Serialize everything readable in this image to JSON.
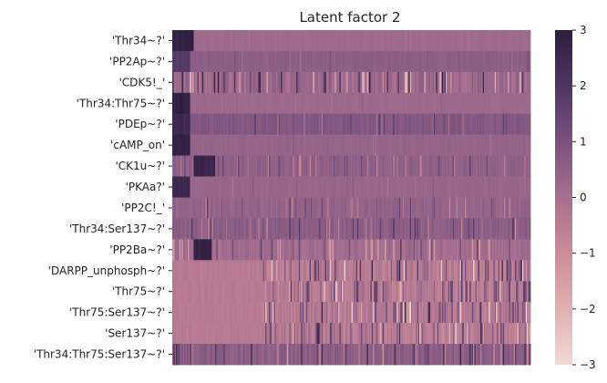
{
  "chart_data": {
    "type": "heatmap",
    "title": "Latent factor 2",
    "xlabel": "",
    "ylabel": "",
    "row_labels": [
      "'Thr34~?'",
      "'PP2Ap~?'",
      "'CDK5!_'",
      "'Thr34:Thr75~?'",
      "'PDEp~?'",
      "'cAMP_on'",
      "'CK1u~?'",
      "'PKAa?'",
      "'PP2C!_'",
      "'Thr34:Ser137~?'",
      "'PP2Ba~?'",
      "'DARPP_unphosph~?'",
      "'Thr75~?'",
      "'Thr75:Ser137~?'",
      "'Ser137~?'",
      "'Thr34:Thr75:Ser137~?'"
    ],
    "column_count": 300,
    "value_range": [
      -3,
      3
    ],
    "colorbar": {
      "ticks": [
        3,
        2,
        1,
        0,
        -1,
        -2,
        -3
      ],
      "tick_labels": [
        "3",
        "2",
        "1",
        "0",
        "−1",
        "−2",
        "−3"
      ],
      "colors": [
        "#f0dad6",
        "#e0b0ae",
        "#cc8c98",
        "#a66f8f",
        "#7a527d",
        "#4f3563",
        "#2d1e3e"
      ]
    },
    "rows_profile": [
      {
        "base": 0.15,
        "noise": 0.15,
        "hot_start": 0.0,
        "hot_end": 0.06,
        "hot_value": 3.0,
        "texture": 0.2
      },
      {
        "base": 0.55,
        "noise": 0.25,
        "hot_start": 0.0,
        "hot_end": 0.05,
        "hot_value": 2.0,
        "texture": 0.3
      },
      {
        "base": 0.2,
        "noise": 1.4,
        "hot_start": 0.0,
        "hot_end": 0.0,
        "hot_value": 0,
        "texture": 1.0
      },
      {
        "base": 0.2,
        "noise": 0.15,
        "hot_start": 0.0,
        "hot_end": 0.05,
        "hot_value": 3.0,
        "texture": 0.2
      },
      {
        "base": 0.8,
        "noise": 0.6,
        "hot_start": 0.0,
        "hot_end": 0.05,
        "hot_value": 2.6,
        "texture": 0.6
      },
      {
        "base": 0.35,
        "noise": 0.2,
        "hot_start": 0.0,
        "hot_end": 0.05,
        "hot_value": 3.0,
        "texture": 0.25
      },
      {
        "base": 0.5,
        "noise": 0.6,
        "hot_start": 0.06,
        "hot_end": 0.12,
        "hot_value": 2.8,
        "texture": 0.7
      },
      {
        "base": 0.3,
        "noise": 0.2,
        "hot_start": 0.0,
        "hot_end": 0.05,
        "hot_value": 2.7,
        "texture": 0.3
      },
      {
        "base": 0.4,
        "noise": 0.6,
        "hot_start": 0.0,
        "hot_end": 0.0,
        "hot_value": 0,
        "texture": 0.7
      },
      {
        "base": 0.6,
        "noise": 0.8,
        "hot_start": 0.0,
        "hot_end": 0.0,
        "hot_value": 0,
        "texture": 0.8
      },
      {
        "base": 0.1,
        "noise": 0.9,
        "hot_start": 0.06,
        "hot_end": 0.11,
        "hot_value": 3.0,
        "texture": 0.8
      },
      {
        "base": -0.3,
        "noise": 1.4,
        "hot_start": 0.0,
        "hot_end": 0.0,
        "hot_value": 0,
        "texture": 1.0
      },
      {
        "base": -0.3,
        "noise": 1.2,
        "hot_start": 0.0,
        "hot_end": 0.0,
        "hot_value": 0,
        "texture": 0.9
      },
      {
        "base": -0.2,
        "noise": 1.3,
        "hot_start": 0.0,
        "hot_end": 0.0,
        "hot_value": 0,
        "texture": 1.0
      },
      {
        "base": -0.3,
        "noise": 1.3,
        "hot_start": 0.0,
        "hot_end": 0.0,
        "hot_value": 0,
        "texture": 1.0
      },
      {
        "base": 0.6,
        "noise": 1.0,
        "hot_start": 0.0,
        "hot_end": 0.0,
        "hot_value": 0,
        "texture": 0.9
      }
    ]
  }
}
